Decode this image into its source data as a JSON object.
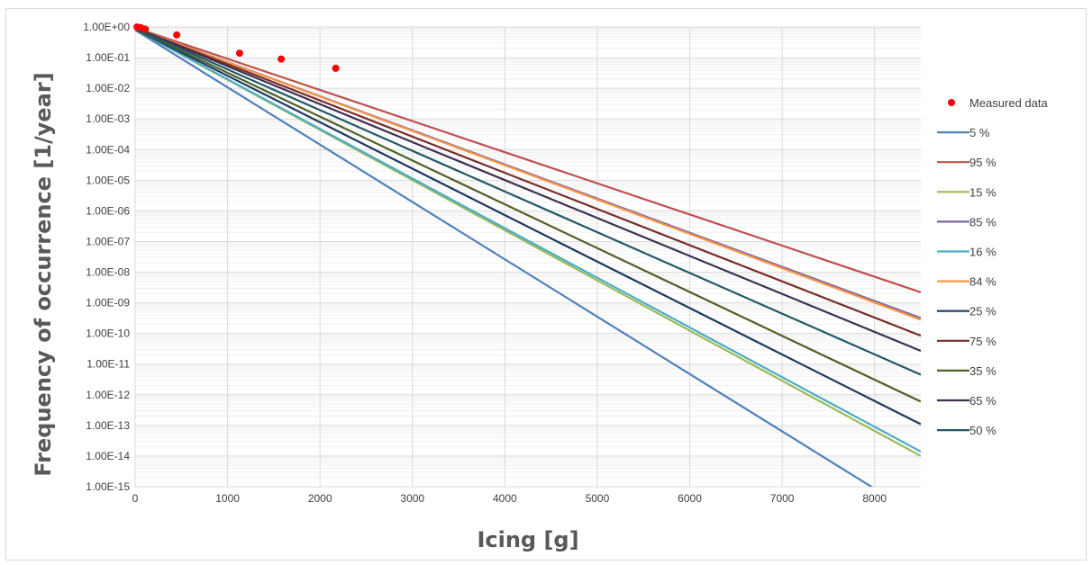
{
  "chart_data": {
    "type": "line",
    "title": "",
    "xlabel": "Icing [g]",
    "ylabel": "Frequency of occurrence [1/year]",
    "xlim": [
      0,
      8500
    ],
    "ylim": [
      1e-15,
      1
    ],
    "y_scale": "log",
    "grid": true,
    "legend_position": "right",
    "x_ticks": [
      "0",
      "1000",
      "2000",
      "3000",
      "4000",
      "5000",
      "6000",
      "7000",
      "8000"
    ],
    "x_tick_values": [
      0,
      1000,
      2000,
      3000,
      4000,
      5000,
      6000,
      7000,
      8000
    ],
    "y_ticks": [
      "1.00E-15",
      "1.00E-14",
      "1.00E-13",
      "1.00E-12",
      "1.00E-11",
      "1.00E-10",
      "1.00E-09",
      "1.00E-08",
      "1.00E-07",
      "1.00E-06",
      "1.00E-05",
      "1.00E-04",
      "1.00E-03",
      "1.00E-02",
      "1.00E-01",
      "1.00E+00"
    ],
    "measured": {
      "name": "Measured data",
      "color": "#ff0000",
      "x": [
        20,
        60,
        110,
        450,
        1130,
        1580,
        2170
      ],
      "y": [
        1.0,
        0.95,
        0.85,
        0.55,
        0.14,
        0.09,
        0.045
      ]
    },
    "series": [
      {
        "name": "5 %",
        "color": "#4f81bd",
        "x": [
          0,
          8500
        ],
        "y": [
          0.8,
          1e-16
        ]
      },
      {
        "name": "95 %",
        "color": "#c0504d",
        "x": [
          0,
          8500
        ],
        "y": [
          0.95,
          2.2e-09
        ]
      },
      {
        "name": "15 %",
        "color": "#9bbb59",
        "x": [
          0,
          8500
        ],
        "y": [
          0.82,
          1e-14
        ]
      },
      {
        "name": "85 %",
        "color": "#8064a2",
        "x": [
          0,
          8500
        ],
        "y": [
          0.93,
          3.2e-10
        ]
      },
      {
        "name": "16 %",
        "color": "#4bacc6",
        "x": [
          0,
          8500
        ],
        "y": [
          0.82,
          1.4e-14
        ]
      },
      {
        "name": "84 %",
        "color": "#f79646",
        "x": [
          0,
          8500
        ],
        "y": [
          0.93,
          2.8e-10
        ]
      },
      {
        "name": "25 %",
        "color": "#1f3864",
        "x": [
          0,
          8500
        ],
        "y": [
          0.84,
          1.1e-13
        ]
      },
      {
        "name": "75 %",
        "color": "#772c2a",
        "x": [
          0,
          8500
        ],
        "y": [
          0.92,
          8.5e-11
        ]
      },
      {
        "name": "35 %",
        "color": "#4f6228",
        "x": [
          0,
          8500
        ],
        "y": [
          0.86,
          6e-13
        ]
      },
      {
        "name": "65 %",
        "color": "#403152",
        "x": [
          0,
          8500
        ],
        "y": [
          0.91,
          2.7e-11
        ]
      },
      {
        "name": "50 %",
        "color": "#215967",
        "x": [
          0,
          8500
        ],
        "y": [
          0.88,
          4.5e-12
        ]
      }
    ]
  }
}
